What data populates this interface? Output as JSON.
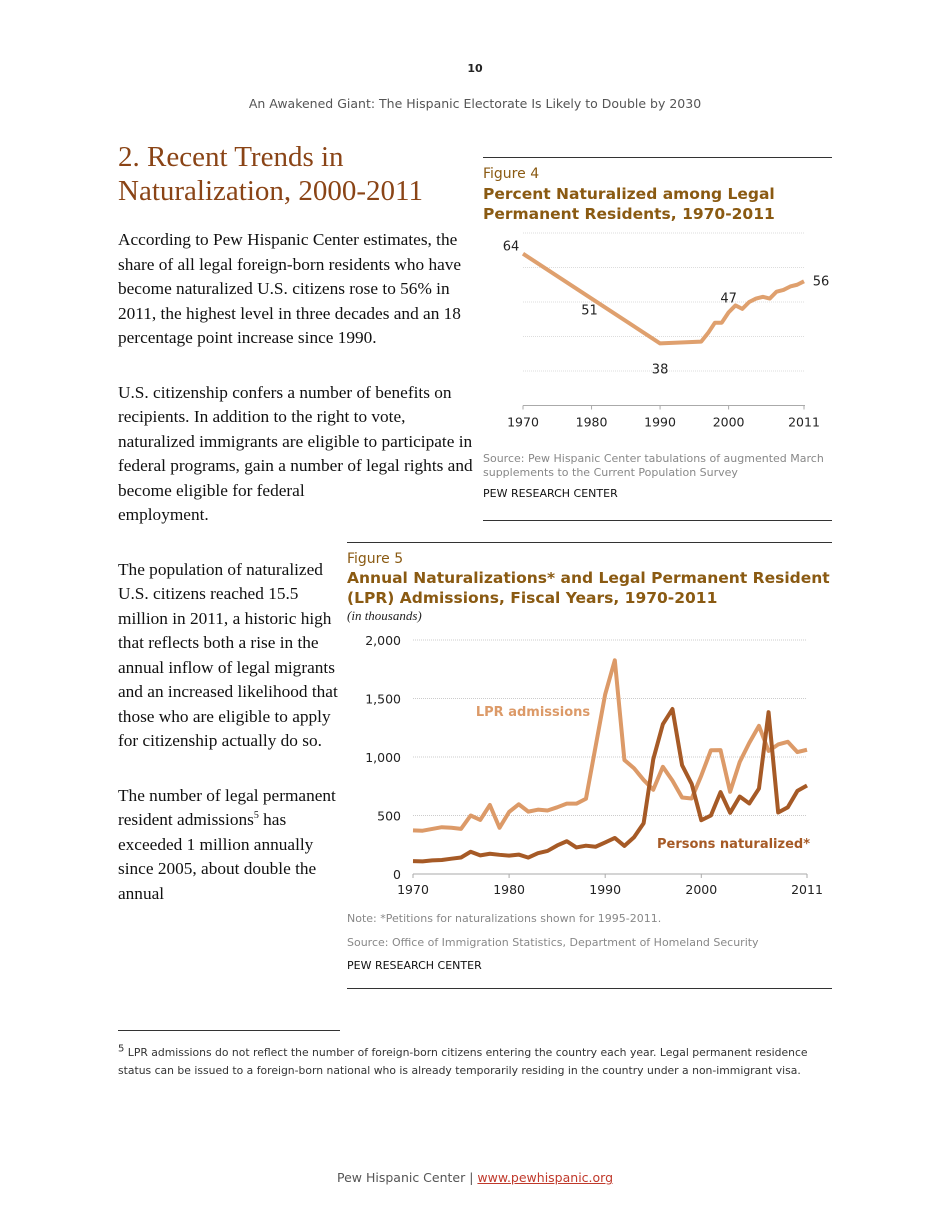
{
  "page_number": "10",
  "running_head": "An Awakened Giant: The Hispanic Electorate Is Likely to Double by 2030",
  "section_title": "2. Recent Trends in Naturalization, 2000-2011",
  "paragraphs": [
    "According to Pew Hispanic Center estimates, the share of all legal foreign-born residents who have become naturalized U.S. citizens rose to 56% in 2011, the highest level in three decades and an 18 percentage point increase since 1990.",
    "U.S. citizenship confers a number of benefits on recipients. In addition to the right to vote, naturalized immigrants are eligible to participate in federal programs, gain a number of legal rights and become eligible for federal employment.",
    "The population of naturalized U.S. citizens reached 15.5 million in 2011, a historic high that reflects both a rise in the annual inflow of legal migrants and an increased likelihood that those who are eligible to apply for citizenship actually do so.",
    {
      "before": "The number of legal permanent resident admissions",
      "sup": "5",
      "after": " has exceeded 1 million annually since 2005, about double the annual"
    }
  ],
  "figure4": {
    "label": "Figure 4",
    "title": "Percent Naturalized among Legal Permanent Residents, 1970-2011",
    "source": "Source: Pew Hispanic Center tabulations of augmented March supplements to the Current Population Survey",
    "credit": "PEW RESEARCH CENTER"
  },
  "figure5": {
    "label": "Figure 5",
    "title": "Annual Naturalizations* and Legal Permanent Resident (LPR) Admissions, Fiscal Years, 1970-2011",
    "subtitle": "(in thousands)",
    "note": "Note: *Petitions for naturalizations shown for 1995-2011.",
    "source": "Source: Office of Immigration Statistics, Department of Homeland Security",
    "credit": "PEW RESEARCH CENTER"
  },
  "chart_data": [
    {
      "type": "line",
      "title": "Percent Naturalized among Legal Permanent Residents, 1970-2011",
      "xlim": [
        1970,
        2011
      ],
      "ylim": [
        20,
        70
      ],
      "grid": true,
      "x_ticks": [
        "1970",
        "1980",
        "1990",
        "2000",
        "2011"
      ],
      "color": "#dfa06e",
      "x": [
        1970,
        1980,
        1990,
        1996,
        1997,
        1998,
        1999,
        2000,
        2001,
        2002,
        2003,
        2004,
        2005,
        2006,
        2007,
        2008,
        2009,
        2010,
        2011
      ],
      "y": [
        64,
        51,
        38,
        38.5,
        41,
        44,
        44,
        47,
        49,
        48,
        50,
        51,
        51.5,
        51,
        53,
        53.5,
        54.5,
        55,
        56
      ],
      "data_labels": [
        {
          "x": 1970,
          "text": "64"
        },
        {
          "x": 1980,
          "text": "51"
        },
        {
          "x": 1990,
          "text": "38"
        },
        {
          "x": 2000,
          "text": "47"
        },
        {
          "x": 2011,
          "text": "56"
        }
      ]
    },
    {
      "type": "line",
      "title": "Annual Naturalizations* and Legal Permanent Resident (LPR) Admissions, Fiscal Years, 1970-2011",
      "ylabel": "(in thousands)",
      "xlim": [
        1970,
        2011
      ],
      "ylim": [
        0,
        2000
      ],
      "grid": true,
      "x_ticks": [
        "1970",
        "1980",
        "1990",
        "2000",
        "2011"
      ],
      "y_ticks": [
        "0",
        "500",
        "1,000",
        "1,500",
        "2,000"
      ],
      "x": [
        1970,
        1971,
        1972,
        1973,
        1974,
        1975,
        1976,
        1977,
        1978,
        1979,
        1980,
        1981,
        1982,
        1983,
        1984,
        1985,
        1986,
        1987,
        1988,
        1989,
        1990,
        1991,
        1992,
        1993,
        1994,
        1995,
        1996,
        1997,
        1998,
        1999,
        2000,
        2001,
        2002,
        2003,
        2004,
        2005,
        2006,
        2007,
        2008,
        2009,
        2010,
        2011
      ],
      "series": [
        {
          "name": "LPR admissions",
          "color": "#dc9a68",
          "values": [
            373,
            370,
            385,
            400,
            395,
            386,
            500,
            462,
            590,
            395,
            530,
            596,
            533,
            550,
            543,
            570,
            601,
            601,
            643,
            1090,
            1536,
            1827,
            974,
            904,
            804,
            720,
            916,
            798,
            654,
            645,
            841,
            1058,
            1059,
            703,
            957,
            1122,
            1266,
            1052,
            1107,
            1130,
            1042,
            1062
          ]
        },
        {
          "name": "Persons naturalized*",
          "color": "#a65a26",
          "values": [
            110,
            108,
            116,
            120,
            131,
            141,
            190,
            159,
            173,
            164,
            157,
            166,
            140,
            178,
            197,
            244,
            280,
            227,
            242,
            233,
            270,
            308,
            240,
            314,
            434,
            980,
            1280,
            1410,
            930,
            770,
            460,
            500,
            700,
            523,
            662,
            603,
            730,
            1383,
            526,
            570,
            710,
            756
          ]
        }
      ]
    }
  ],
  "footnote": {
    "mark": "5",
    "text": " LPR admissions do not reflect the number of foreign-born citizens entering the country each year. Legal permanent residence status can be issued to a foreign-born national who is already temporarily residing in the country under a non-immigrant visa."
  },
  "footer": {
    "org": "Pew Hispanic Center | ",
    "link": "www.pewhispanic.org"
  }
}
